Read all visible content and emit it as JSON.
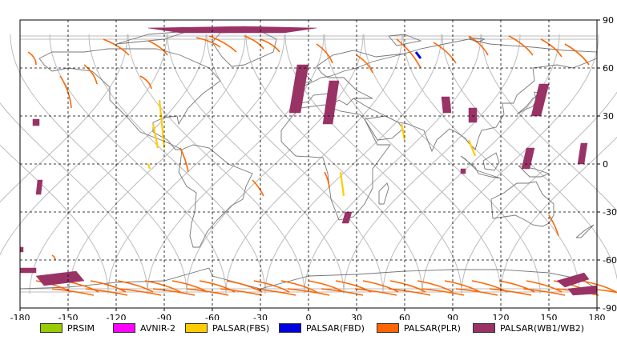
{
  "map": {
    "x_ticks": [
      "-180",
      "-150",
      "-120",
      "-90",
      "-60",
      "-30",
      "0",
      "30",
      "60",
      "90",
      "120",
      "150",
      "180"
    ],
    "y_ticks_right": [
      "90",
      "60",
      "30",
      "0",
      "-30",
      "-60",
      "-90"
    ],
    "lon_range": [
      -180,
      180
    ],
    "lat_range": [
      -90,
      90
    ],
    "grid": "dashed",
    "colors": {
      "prsim": "#99cc00",
      "avnir2": "#ff00ff",
      "palsar_fbs": "#ffcc00",
      "palsar_fbd": "#0000dd",
      "palsar_plr": "#ff6600",
      "palsar_wb": "#993366",
      "orbit": "#bbbbbb",
      "coast": "#777777"
    }
  },
  "legend": [
    {
      "label": "PRSIM",
      "color": "#99cc00"
    },
    {
      "label": "AVNIR-2",
      "color": "#ff00ff"
    },
    {
      "label": "PALSAR(FBS)",
      "color": "#ffcc00"
    },
    {
      "label": "PALSAR(FBD)",
      "color": "#0000dd"
    },
    {
      "label": "PALSAR(PLR)",
      "color": "#ff6600"
    },
    {
      "label": "PALSAR(WB1/WB2)",
      "color": "#993366"
    }
  ]
}
